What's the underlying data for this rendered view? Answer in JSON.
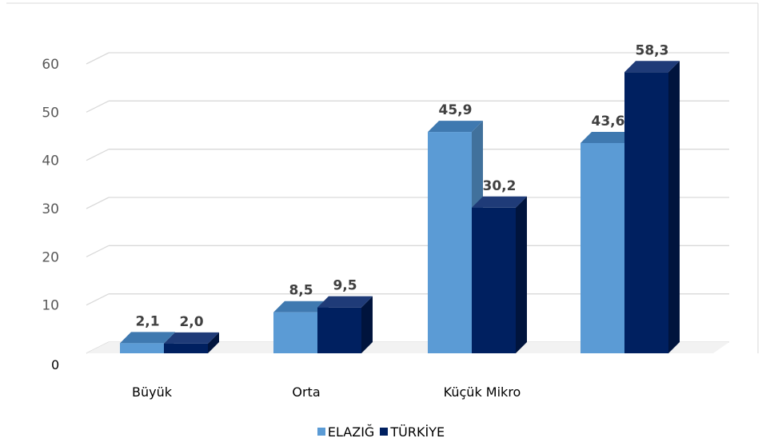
{
  "chart_data": {
    "type": "bar",
    "categories": [
      "Büyük",
      "Orta",
      "Küçük Mikro",
      ""
    ],
    "series": [
      {
        "name": "ELAZIĞ",
        "values": [
          2.1,
          8.5,
          45.9,
          43.6
        ],
        "labels": [
          "2,1",
          "8,5",
          "45,9",
          "43,6"
        ]
      },
      {
        "name": "TÜRKİYE",
        "values": [
          2.0,
          9.5,
          30.2,
          58.3
        ],
        "labels": [
          "2,0",
          "9,5",
          "30,2",
          "58,3"
        ]
      }
    ],
    "yticks": [
      "0",
      "10",
      "20",
      "30",
      "40",
      "50",
      "60"
    ],
    "ylim": [
      0,
      60
    ],
    "grid": true,
    "legend": "bottom-center",
    "three_d": true,
    "colors": {
      "ELAZIĞ": "#5b9bd5",
      "TÜRKİYE": "#002060",
      "grid": "#d9d9d9"
    }
  }
}
